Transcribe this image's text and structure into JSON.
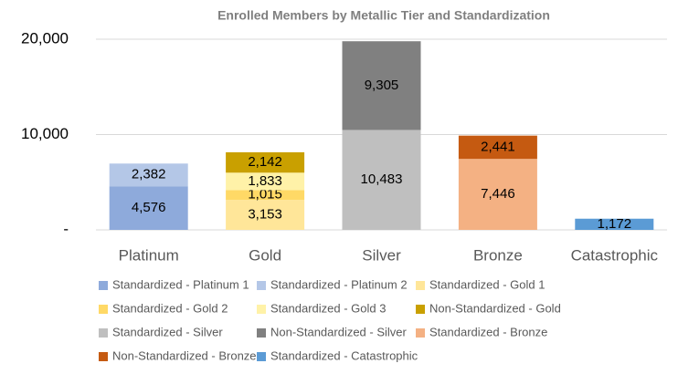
{
  "chart_data": {
    "type": "stacked_bar",
    "title": "Enrolled Members by Metallic Tier and Standardization",
    "categories": [
      "Platinum",
      "Gold",
      "Silver",
      "Bronze",
      "Catastrophic"
    ],
    "series": [
      {
        "name": "Standardized - Platinum 1",
        "color": "#8eaadb",
        "values": [
          4576,
          null,
          null,
          null,
          null
        ],
        "value_labels": [
          "4,576",
          null,
          null,
          null,
          null
        ]
      },
      {
        "name": "Standardized - Platinum 2",
        "color": "#b4c7e7",
        "values": [
          2382,
          null,
          null,
          null,
          null
        ],
        "value_labels": [
          "2,382",
          null,
          null,
          null,
          null
        ]
      },
      {
        "name": "Standardized - Gold 1",
        "color": "#ffe699",
        "values": [
          null,
          3153,
          null,
          null,
          null
        ],
        "value_labels": [
          null,
          "3,153",
          null,
          null,
          null
        ]
      },
      {
        "name": "Standardized - Gold 2",
        "color": "#ffd966",
        "values": [
          null,
          1015,
          null,
          null,
          null
        ],
        "value_labels": [
          null,
          "1,015",
          null,
          null,
          null
        ]
      },
      {
        "name": "Standardized - Gold 3",
        "color": "#fff2a8",
        "values": [
          null,
          1833,
          null,
          null,
          null
        ],
        "value_labels": [
          null,
          "1,833",
          null,
          null,
          null
        ]
      },
      {
        "name": "Non-Standardized - Gold",
        "color": "#c9a000",
        "values": [
          null,
          2142,
          null,
          null,
          null
        ],
        "value_labels": [
          null,
          "2,142",
          null,
          null,
          null
        ]
      },
      {
        "name": "Standardized - Silver",
        "color": "#bfbfbf",
        "values": [
          null,
          null,
          10483,
          null,
          null
        ],
        "value_labels": [
          null,
          null,
          "10,483",
          null,
          null
        ]
      },
      {
        "name": "Non-Standardized - Silver",
        "color": "#808080",
        "values": [
          null,
          null,
          9305,
          null,
          null
        ],
        "value_labels": [
          null,
          null,
          "9,305",
          null,
          null
        ]
      },
      {
        "name": "Standardized - Bronze",
        "color": "#f4b183",
        "values": [
          null,
          null,
          null,
          7446,
          null
        ],
        "value_labels": [
          null,
          null,
          null,
          "7,446",
          null
        ]
      },
      {
        "name": "Non-Standardized - Bronze",
        "color": "#c55a11",
        "values": [
          null,
          null,
          null,
          2441,
          null
        ],
        "value_labels": [
          null,
          null,
          null,
          "2,441",
          null
        ]
      },
      {
        "name": "Standardized - Catastrophic",
        "color": "#5b9bd5",
        "values": [
          null,
          null,
          null,
          null,
          1172
        ],
        "value_labels": [
          null,
          null,
          null,
          null,
          "1,172"
        ]
      }
    ],
    "ylim": [
      0,
      20000
    ],
    "yticks": [
      {
        "value": 0,
        "label": "-"
      },
      {
        "value": 10000,
        "label": "10,000"
      },
      {
        "value": 20000,
        "label": "20,000"
      }
    ],
    "grid": true
  }
}
